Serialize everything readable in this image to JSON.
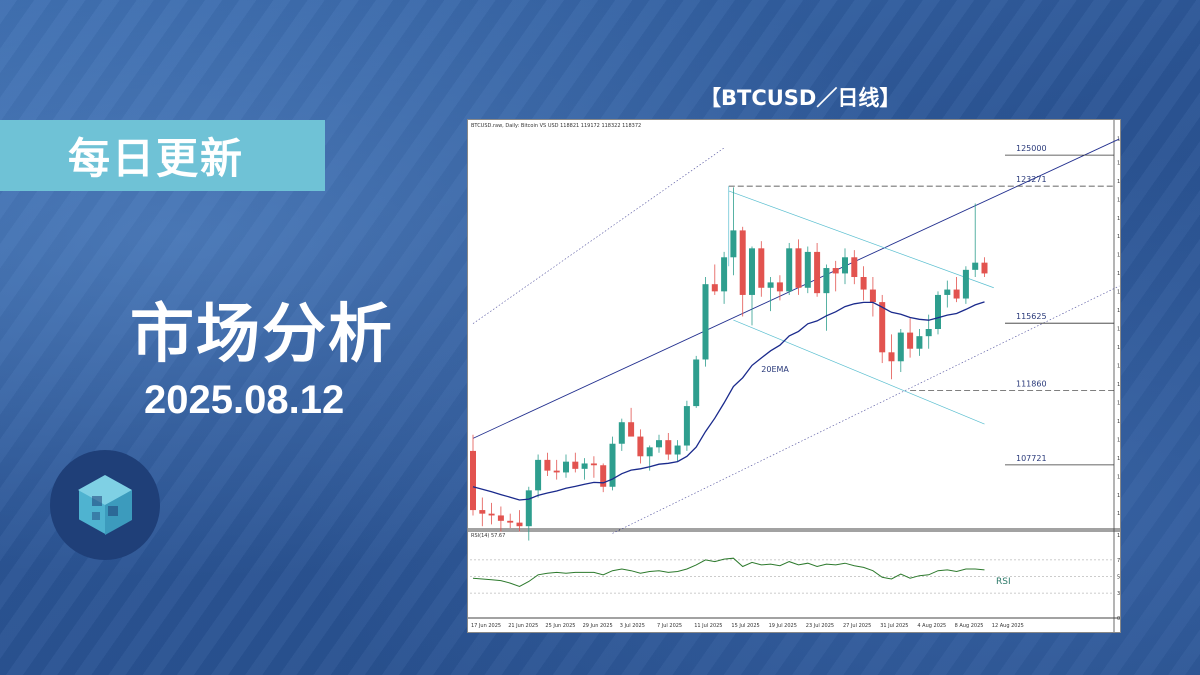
{
  "badge": {
    "label": "每日更新"
  },
  "headline": {
    "title": "市场分析",
    "date": "2025.08.12"
  },
  "chart_caption": "【BTCUSD／日线】",
  "colors": {
    "up": "#2e9e8e",
    "down": "#e2534f",
    "ema": "#1a2a8c",
    "rsi": "#2d7a2d",
    "badge": "#6fc2d6"
  },
  "chart_data": {
    "type": "candlestick",
    "header": "BTCUSD.raw, Daily: Bitcoin VS USD  118821 119172 118322 118372",
    "ylim": [
      104200,
      126400
    ],
    "y_ticks": [
      125924,
      124594,
      123564,
      122534,
      121504,
      120474,
      119444,
      118414,
      117384,
      116354,
      115324,
      114294,
      113264,
      112234,
      111204,
      110174,
      109144,
      108114,
      107084,
      106054,
      105024
    ],
    "x_labels": [
      "17 Jun 2025",
      "21 Jun 2025",
      "25 Jun 2025",
      "29 Jun 2025",
      "3 Jul 2025",
      "7 Jul 2025",
      "11 Jul 2025",
      "15 Jul 2025",
      "19 Jul 2025",
      "23 Jul 2025",
      "27 Jul 2025",
      "31 Jul 2025",
      "4 Aug 2025",
      "8 Aug 2025",
      "12 Aug 2025"
    ],
    "candles": [
      [
        108500,
        109400,
        104900,
        105200
      ],
      [
        105200,
        105900,
        104300,
        105000
      ],
      [
        105000,
        105600,
        104400,
        104900
      ],
      [
        104900,
        105400,
        104000,
        104600
      ],
      [
        104600,
        105000,
        104200,
        104500
      ],
      [
        104500,
        105200,
        104000,
        104300
      ],
      [
        104300,
        106500,
        103500,
        106300
      ],
      [
        106300,
        108300,
        105900,
        108000
      ],
      [
        108000,
        108400,
        107100,
        107400
      ],
      [
        107400,
        108000,
        106900,
        107300
      ],
      [
        107300,
        108300,
        107000,
        107900
      ],
      [
        107900,
        108400,
        107300,
        107500
      ],
      [
        107500,
        108100,
        106900,
        107800
      ],
      [
        107800,
        108200,
        107000,
        107700
      ],
      [
        107700,
        107800,
        106200,
        106500
      ],
      [
        106500,
        109300,
        106300,
        108900
      ],
      [
        108900,
        110300,
        108500,
        110100
      ],
      [
        110100,
        110900,
        109400,
        109300
      ],
      [
        109300,
        109700,
        107800,
        108200
      ],
      [
        108200,
        108800,
        107400,
        108700
      ],
      [
        108700,
        109400,
        108400,
        109100
      ],
      [
        109100,
        109500,
        108000,
        108300
      ],
      [
        108300,
        109100,
        107900,
        108800
      ],
      [
        108800,
        111300,
        108500,
        111000
      ],
      [
        111000,
        113800,
        110900,
        113600
      ],
      [
        113600,
        118200,
        113200,
        117800
      ],
      [
        117800,
        118900,
        117200,
        117400
      ],
      [
        117400,
        119600,
        116700,
        119300
      ],
      [
        119300,
        123200,
        118300,
        120800
      ],
      [
        120800,
        121000,
        116000,
        117200
      ],
      [
        117200,
        119900,
        115500,
        119800
      ],
      [
        119800,
        120200,
        117100,
        117600
      ],
      [
        117600,
        118200,
        116300,
        117900
      ],
      [
        117900,
        118300,
        116900,
        117400
      ],
      [
        117400,
        120100,
        117200,
        119800
      ],
      [
        119800,
        120300,
        117200,
        117600
      ],
      [
        117600,
        119900,
        117300,
        119600
      ],
      [
        119600,
        120100,
        117100,
        117300
      ],
      [
        117300,
        118900,
        115200,
        118700
      ],
      [
        118700,
        119100,
        117400,
        118400
      ],
      [
        118400,
        119800,
        117800,
        119300
      ],
      [
        119300,
        119700,
        117800,
        118200
      ],
      [
        118200,
        118800,
        116900,
        117500
      ],
      [
        117500,
        118200,
        116000,
        116800
      ],
      [
        116800,
        117200,
        113400,
        114000
      ],
      [
        114000,
        115000,
        112500,
        113500
      ],
      [
        113500,
        115300,
        112900,
        115100
      ],
      [
        115100,
        115900,
        113700,
        114200
      ],
      [
        114200,
        115300,
        113800,
        114900
      ],
      [
        114900,
        116100,
        114200,
        115300
      ],
      [
        115300,
        117400,
        115000,
        117200
      ],
      [
        117200,
        118000,
        116500,
        117500
      ],
      [
        117500,
        118200,
        116800,
        117000
      ],
      [
        117000,
        118800,
        116700,
        118600
      ],
      [
        118600,
        122300,
        118200,
        119000
      ],
      [
        119000,
        119300,
        118200,
        118400
      ]
    ],
    "ema_label": "20EMA",
    "levels": [
      {
        "label": "125000",
        "value": 125000
      },
      {
        "label": "123271",
        "value": 123271
      },
      {
        "label": "115625",
        "value": 115625
      },
      {
        "label": "111860",
        "value": 111860
      },
      {
        "label": "107721",
        "value": 107721
      }
    ],
    "rsi": {
      "header": "RSI(14) 57.67",
      "label": "RSI",
      "ylim": [
        0,
        100
      ],
      "ticks": [
        100,
        70,
        50,
        30,
        0
      ],
      "tick_labels": [
        "100.00",
        "70.00",
        "50.00",
        "30.00",
        "0.00"
      ],
      "values": [
        48,
        47,
        46,
        45,
        42,
        38,
        44,
        52,
        54,
        55,
        54,
        55,
        55,
        55,
        52,
        57,
        59,
        57,
        54,
        56,
        57,
        55,
        56,
        59,
        64,
        70,
        68,
        71,
        72,
        62,
        67,
        64,
        65,
        63,
        68,
        64,
        66,
        62,
        65,
        64,
        66,
        63,
        61,
        57,
        49,
        47,
        53,
        48,
        51,
        52,
        57,
        58,
        56,
        59,
        59,
        58
      ]
    }
  }
}
